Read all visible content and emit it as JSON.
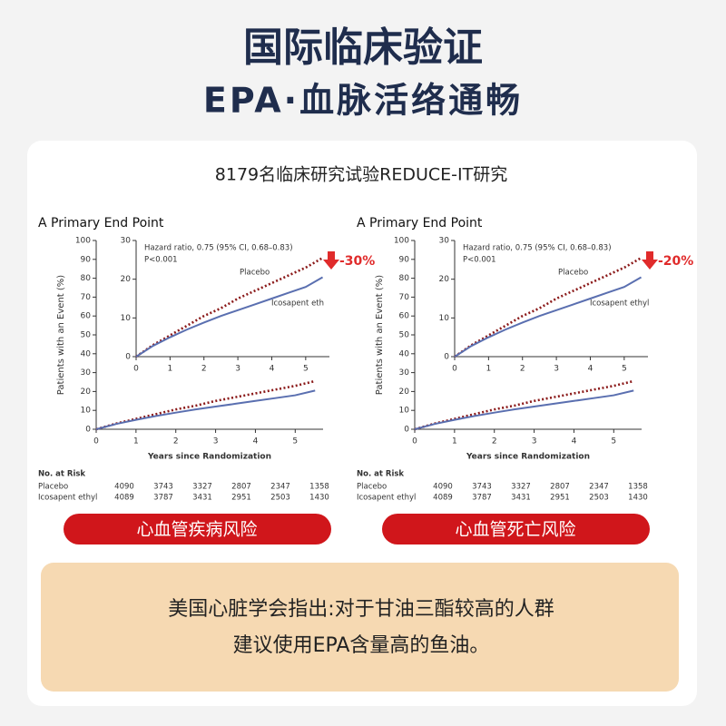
{
  "header": {
    "title": "国际临床验证",
    "subtitle": "EPA·血脉活络通畅"
  },
  "card_title": "8179名临床研究试验REDUCE-IT研究",
  "chart_data": [
    {
      "type": "line",
      "title": "A Primary End Point",
      "x_label": "Years since Randomization",
      "y_label": "Patients with an Event (%)",
      "x": [
        0,
        0.5,
        1,
        1.5,
        2,
        2.5,
        3,
        3.5,
        4,
        4.5,
        5,
        5.5
      ],
      "series": [
        {
          "name": "Placebo",
          "color": "#8b1a1a",
          "values": [
            0,
            3,
            5.5,
            8,
            10.5,
            12.5,
            15,
            17,
            19,
            21,
            23,
            25.5
          ]
        },
        {
          "name": "Icosapent eth",
          "color": "#5a6fb0",
          "values": [
            0,
            2.8,
            5,
            7,
            8.8,
            10.5,
            12,
            13.5,
            15,
            16.5,
            18,
            20.5
          ]
        }
      ],
      "xlim": [
        0,
        5.7
      ],
      "xticks": [
        0,
        1,
        2,
        3,
        4,
        5
      ],
      "ylim": [
        0,
        100
      ],
      "yticks": [
        0,
        10,
        20,
        30,
        40,
        50,
        60,
        70,
        80,
        90,
        100
      ],
      "inset": {
        "xlim": [
          0,
          5.7
        ],
        "xticks": [
          0,
          1,
          2,
          3,
          4,
          5
        ],
        "ylim": [
          0,
          30
        ],
        "yticks": [
          0,
          10,
          20,
          30
        ]
      },
      "annotations": [
        "Hazard ratio, 0.75 (95% CI, 0.68–0.83)",
        "P<0.001"
      ],
      "change_label": "-30%",
      "risk_table": {
        "title": "No. at Risk",
        "rows": [
          {
            "label": "Placebo",
            "values": [
              4090,
              3743,
              3327,
              2807,
              2347,
              1358
            ]
          },
          {
            "label": "Icosapent ethyl",
            "values": [
              4089,
              3787,
              3431,
              2951,
              2503,
              1430
            ]
          }
        ]
      },
      "banner": "心血管疾病风险"
    },
    {
      "type": "line",
      "title": "A Primary End Point",
      "x_label": "Years since Randomization",
      "y_label": "Patients with an Event (%)",
      "x": [
        0,
        0.5,
        1,
        1.5,
        2,
        2.5,
        3,
        3.5,
        4,
        4.5,
        5,
        5.5
      ],
      "series": [
        {
          "name": "Placebo",
          "color": "#8b1a1a",
          "values": [
            0,
            3,
            5.5,
            8,
            10.5,
            12.5,
            15,
            17,
            19,
            21,
            23,
            25.5
          ]
        },
        {
          "name": "Icosapent ethyl",
          "color": "#5a6fb0",
          "values": [
            0,
            2.8,
            5,
            7,
            8.8,
            10.5,
            12,
            13.5,
            15,
            16.5,
            18,
            20.5
          ]
        }
      ],
      "xlim": [
        0,
        5.7
      ],
      "xticks": [
        0,
        1,
        2,
        3,
        4,
        5
      ],
      "ylim": [
        0,
        100
      ],
      "yticks": [
        0,
        10,
        20,
        30,
        40,
        50,
        60,
        70,
        80,
        90,
        100
      ],
      "inset": {
        "xlim": [
          0,
          5.7
        ],
        "xticks": [
          0,
          1,
          2,
          3,
          4,
          5
        ],
        "ylim": [
          0,
          30
        ],
        "yticks": [
          0,
          10,
          20,
          30
        ]
      },
      "annotations": [
        "Hazard ratio, 0.75 (95% CI, 0.68–0.83)",
        "P<0.001"
      ],
      "change_label": "-20%",
      "risk_table": {
        "title": "No. at Risk",
        "rows": [
          {
            "label": "Placebo",
            "values": [
              4090,
              3743,
              3327,
              2807,
              2347,
              1358
            ]
          },
          {
            "label": "Icosapent ethyl",
            "values": [
              4089,
              3787,
              3431,
              2951,
              2503,
              1430
            ]
          }
        ]
      },
      "banner": "心血管死亡风险"
    }
  ],
  "note": {
    "lines": [
      "美国心脏学会指出:对于甘油三酯较高的人群",
      "建议使用EPA含量高的鱼油。"
    ]
  }
}
